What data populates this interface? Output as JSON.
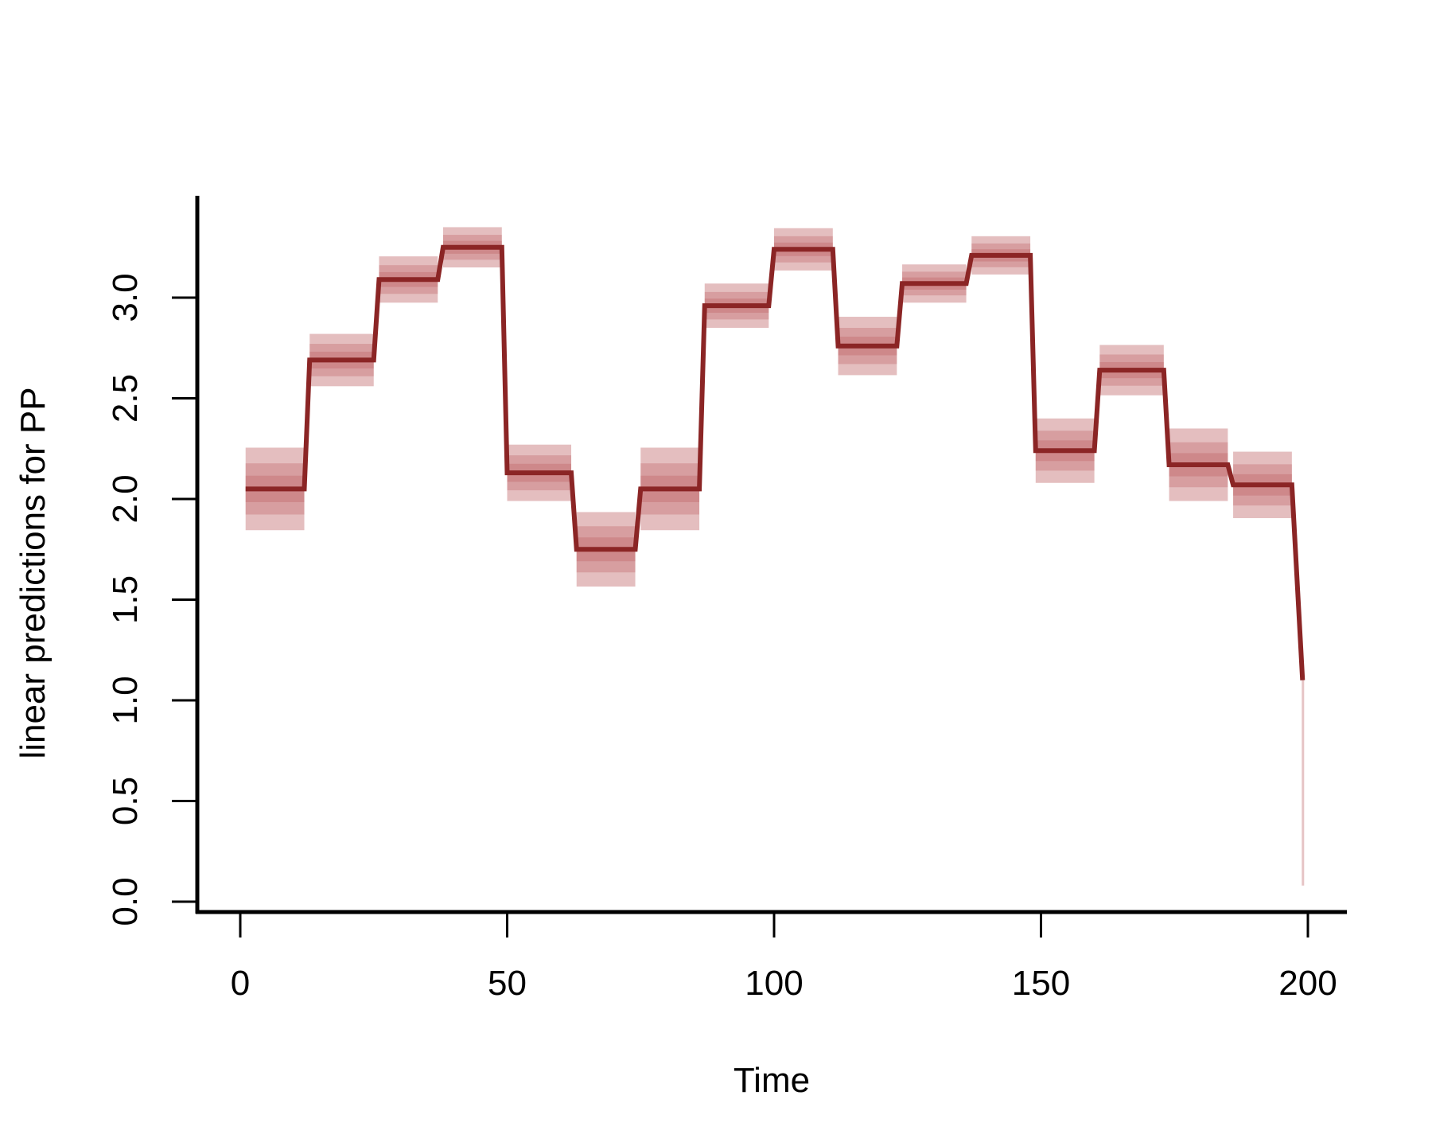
{
  "chart_data": {
    "type": "line",
    "title": "",
    "xlabel": "Time",
    "ylabel": "linear predictions for PP",
    "xlim": [
      0,
      200
    ],
    "ylim": [
      0,
      3.4
    ],
    "xticks": [
      "0",
      "50",
      "100",
      "150",
      "200"
    ],
    "yticks": [
      "0.0",
      "0.5",
      "1.0",
      "1.5",
      "2.0",
      "2.5",
      "3.0"
    ],
    "grid": false,
    "legend": "none",
    "line_color": "#8b2525",
    "band_color": "#b85558",
    "steps": [
      {
        "x0": 1,
        "x1": 12,
        "y": 2.05,
        "lo": 1.85,
        "hi": 2.26
      },
      {
        "x0": 13,
        "x1": 25,
        "y": 2.69,
        "lo": 2.56,
        "hi": 2.82
      },
      {
        "x0": 26,
        "x1": 37,
        "y": 3.09,
        "lo": 2.98,
        "hi": 3.21
      },
      {
        "x0": 38,
        "x1": 49,
        "y": 3.25,
        "lo": 3.16,
        "hi": 3.36
      },
      {
        "x0": 50,
        "x1": 62,
        "y": 2.13,
        "lo": 1.99,
        "hi": 2.27
      },
      {
        "x0": 63,
        "x1": 74,
        "y": 1.75,
        "lo": 1.57,
        "hi": 1.94
      },
      {
        "x0": 75,
        "x1": 86,
        "y": 2.05,
        "lo": 1.84,
        "hi": 2.25
      },
      {
        "x0": 87,
        "x1": 99,
        "y": 2.96,
        "lo": 2.85,
        "hi": 3.07
      },
      {
        "x0": 100,
        "x1": 111,
        "y": 3.24,
        "lo": 3.14,
        "hi": 3.35
      },
      {
        "x0": 112,
        "x1": 123,
        "y": 2.76,
        "lo": 2.61,
        "hi": 2.9
      },
      {
        "x0": 124,
        "x1": 136,
        "y": 3.07,
        "lo": 2.98,
        "hi": 3.17
      },
      {
        "x0": 137,
        "x1": 148,
        "y": 3.21,
        "lo": 3.12,
        "hi": 3.31
      },
      {
        "x0": 149,
        "x1": 160,
        "y": 2.24,
        "lo": 2.08,
        "hi": 2.4
      },
      {
        "x0": 161,
        "x1": 173,
        "y": 2.64,
        "lo": 2.52,
        "hi": 2.77
      },
      {
        "x0": 174,
        "x1": 185,
        "y": 2.17,
        "lo": 1.98,
        "hi": 2.34
      },
      {
        "x0": 186,
        "x1": 197,
        "y": 2.07,
        "lo": 1.91,
        "hi": 2.24
      }
    ],
    "end_point": {
      "x": 199,
      "y": 1.1,
      "lo": 0.08,
      "hi": 1.1
    }
  }
}
